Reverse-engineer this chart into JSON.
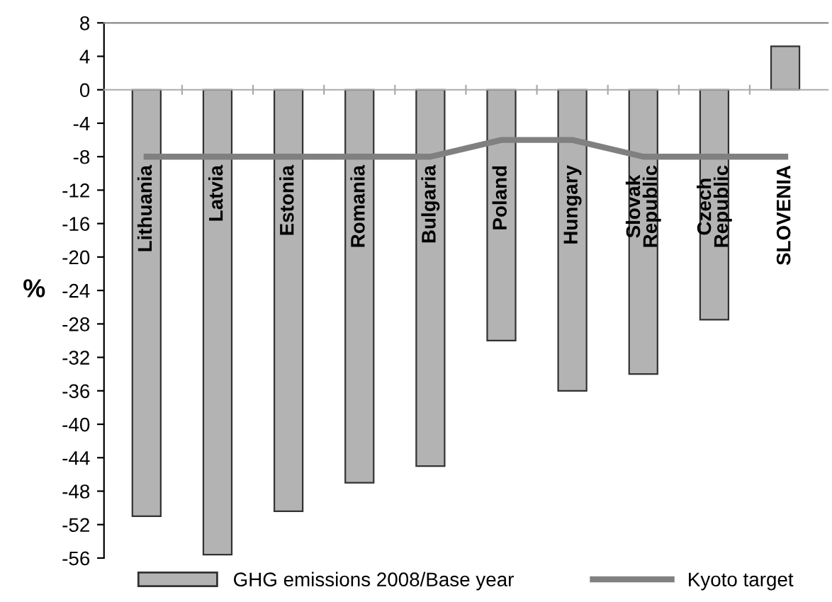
{
  "chart_data": {
    "type": "bar",
    "ylabel": "%",
    "categories": [
      "Lithuania",
      "Latvia",
      "Estonia",
      "Romania",
      "Bulgaria",
      "Poland",
      "Hungary",
      "Slovak\nRepublic",
      "Czech\nRepublic",
      "SLOVENIA"
    ],
    "series": [
      {
        "name": "GHG emissions 2008/Base year",
        "color": "#b3b3b3",
        "values": [
          -51,
          -55.6,
          -50.4,
          -47,
          -45,
          -30,
          -36,
          -34,
          -27.5,
          5.2
        ]
      },
      {
        "name": "Kyoto target",
        "type": "line",
        "color": "#808080",
        "values": [
          -8,
          -8,
          -8,
          -8,
          -8,
          -6,
          -6,
          -8,
          -8,
          -8
        ]
      }
    ],
    "ylim": [
      -56,
      8
    ],
    "yticks": [
      8,
      4,
      0,
      -4,
      -8,
      -12,
      -16,
      -20,
      -24,
      -28,
      -32,
      -36,
      -40,
      -44,
      -48,
      -52,
      -56
    ],
    "legend": "bottom"
  }
}
